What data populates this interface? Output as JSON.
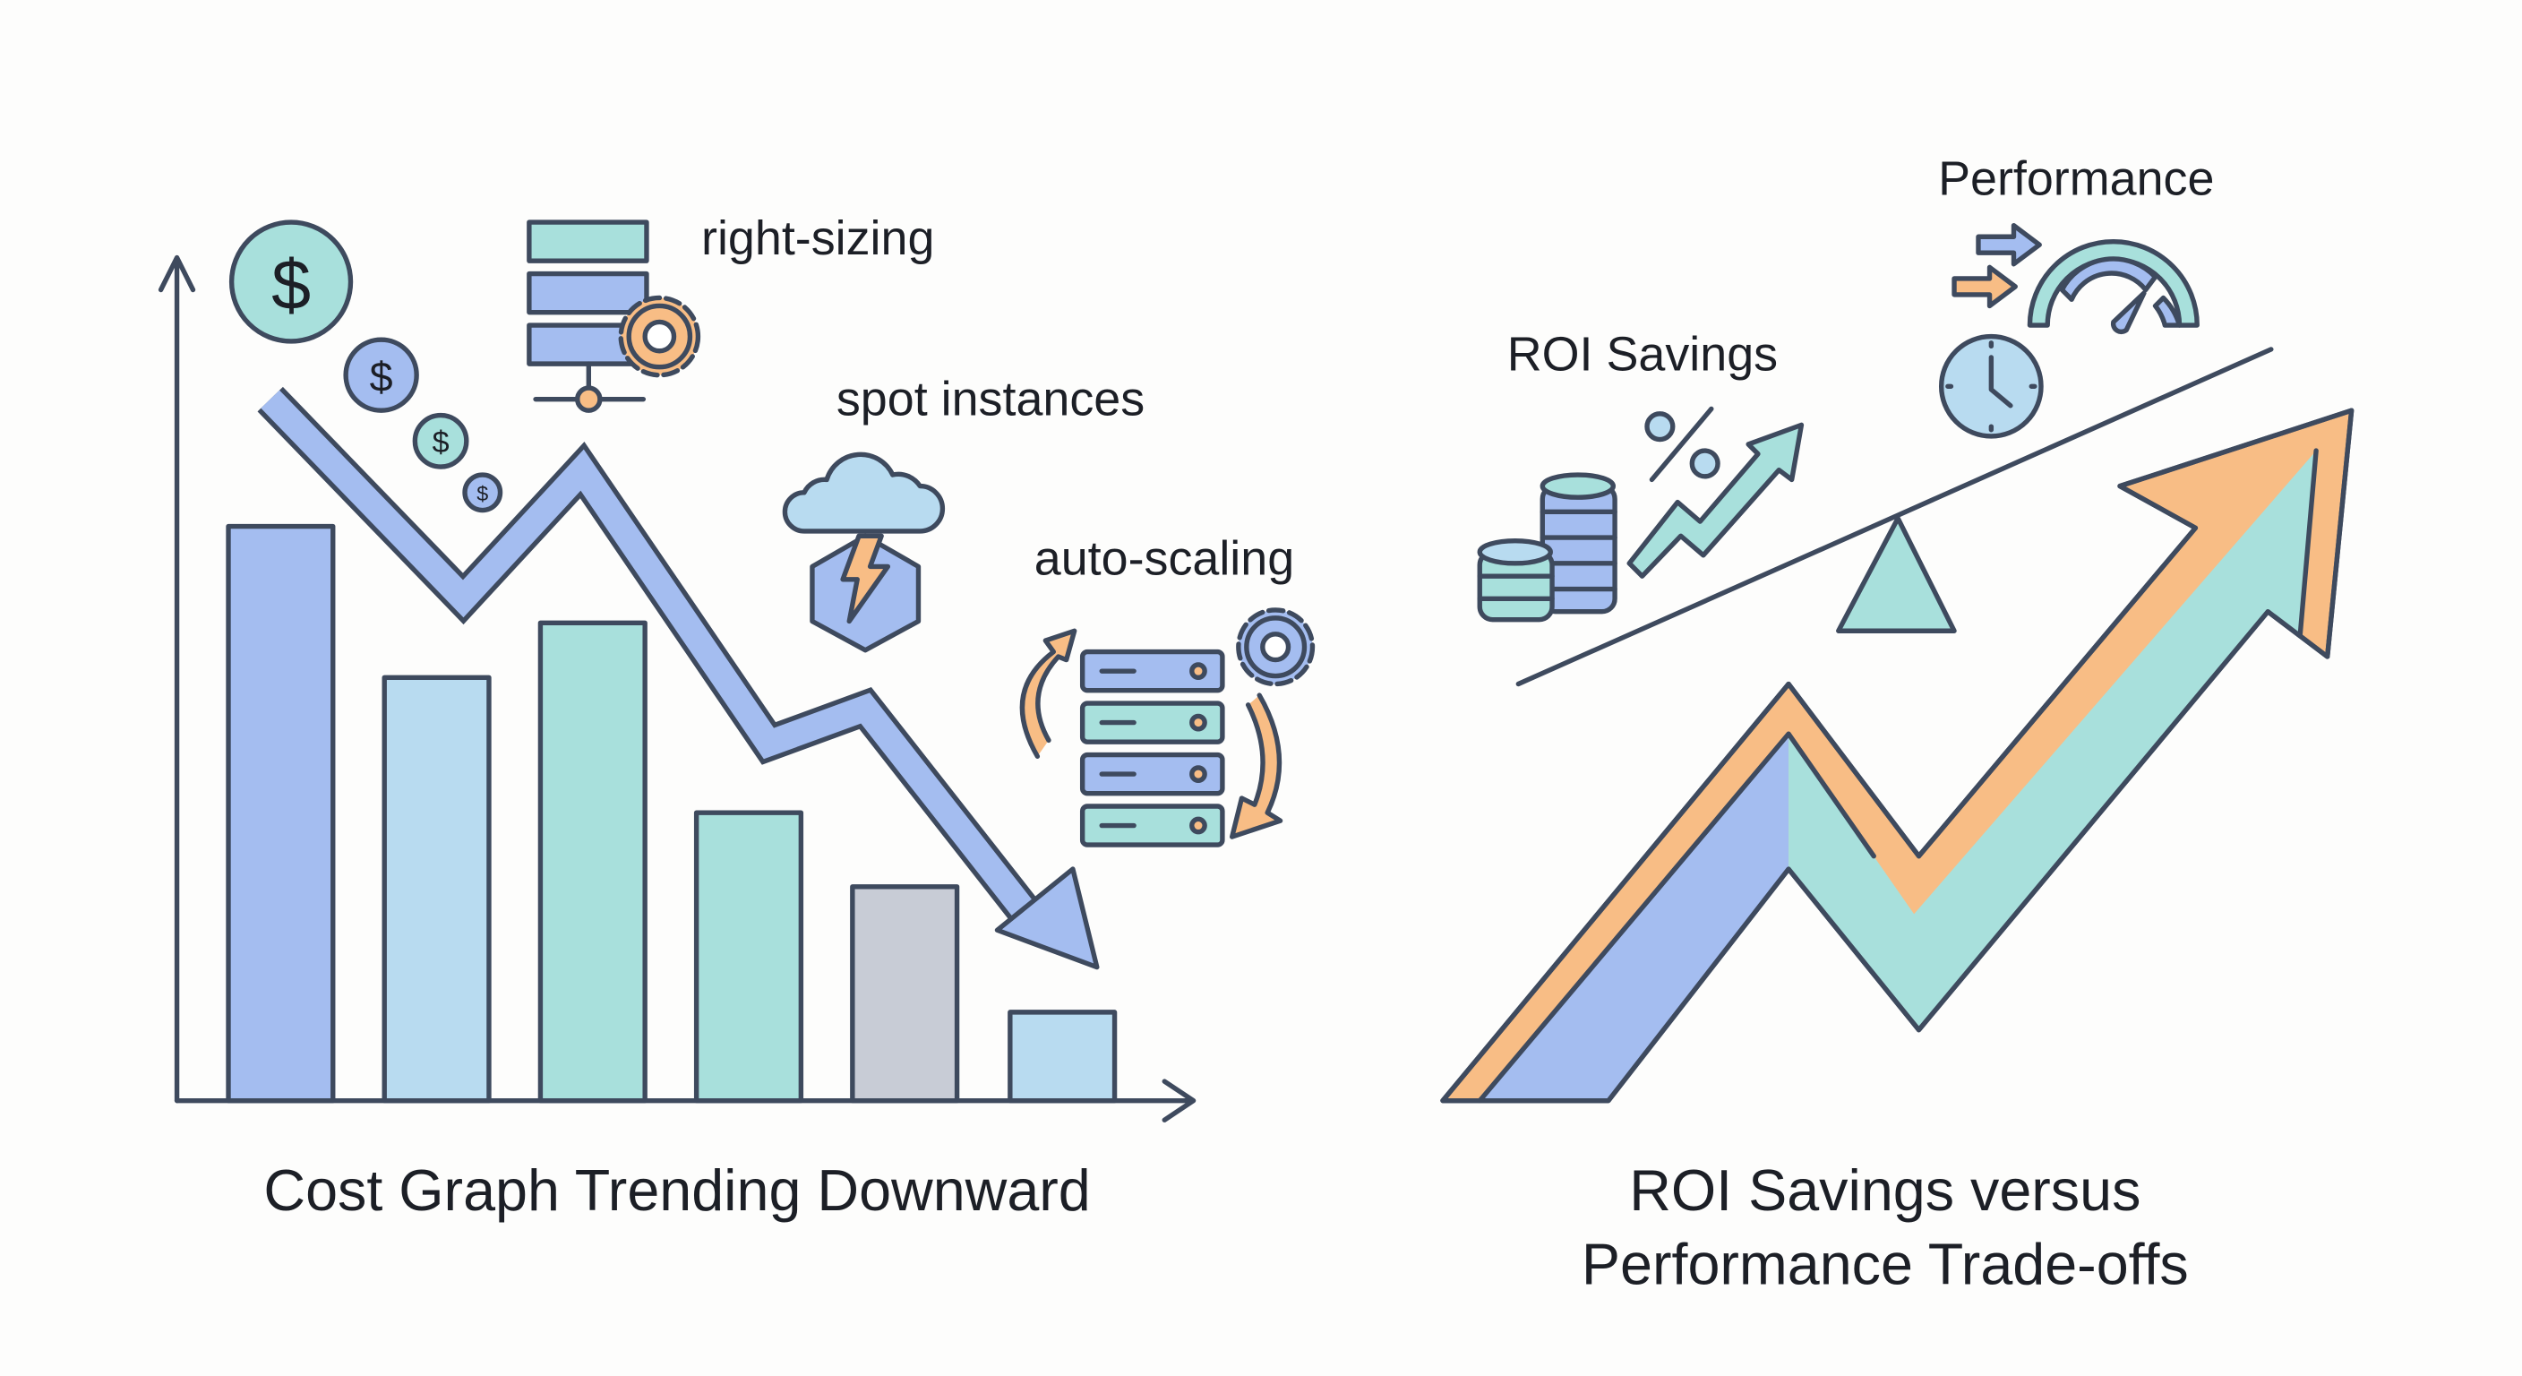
{
  "left_panel": {
    "caption": "Cost Graph Trending Downward",
    "labels": {
      "right_sizing": "right-sizing",
      "spot_instances": "spot instances",
      "auto_scaling": "auto-scaling"
    },
    "coin_symbol": "$",
    "trend": "down"
  },
  "right_panel": {
    "caption_line1": "ROI Savings versus",
    "caption_line2": "Performance Trade-offs",
    "labels": {
      "roi_savings": "ROI Savings",
      "performance": "Performance"
    },
    "percent_symbol": "%",
    "trend": "up"
  },
  "colors": {
    "outline": "#3e4a5e",
    "blue": "#a4bdf0",
    "light_blue": "#b8dbf0",
    "teal": "#a8e0dc",
    "gray": "#c8ccd6",
    "orange": "#f8bd85"
  },
  "icons": [
    "dollar-coin-icon",
    "server-icon",
    "gear-icon",
    "cloud-icon",
    "lightning-icon",
    "coin-stack-icon",
    "percent-icon",
    "clock-icon",
    "speedometer-icon",
    "arrow-icon",
    "balance-scale-icon"
  ]
}
